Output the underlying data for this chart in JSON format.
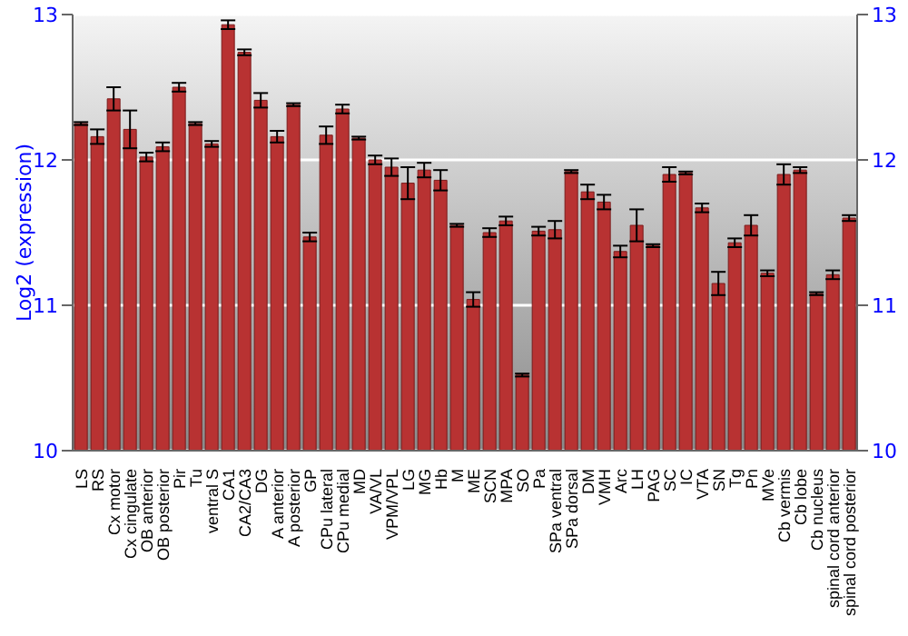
{
  "chart_data": {
    "type": "bar",
    "ylabel": "Log2 (expression)",
    "categories": [
      "LS",
      "RS",
      "Cx motor",
      "Cx cingulate",
      "OB anterior",
      "OB posterior",
      "Pir",
      "Tu",
      "ventral S",
      "CA1",
      "CA2/CA3",
      "DG",
      "A anterior",
      "A posterior",
      "GP",
      "CPu lateral",
      "CPu medial",
      "MD",
      "VA/VL",
      "VPM/VPL",
      "LG",
      "MG",
      "Hb",
      "M",
      "ME",
      "SCN",
      "MPA",
      "SO",
      "Pa",
      "SPa ventral",
      "SPa dorsal",
      "DM",
      "VMH",
      "Arc",
      "LH",
      "PAG",
      "SC",
      "IC",
      "VTA",
      "SN",
      "Tg",
      "Pn",
      "MVe",
      "Cb vermis",
      "Cb lobe",
      "Cb nucleus",
      "spinal cord anterior",
      "spinal cord posterior"
    ],
    "values": [
      12.25,
      12.16,
      12.42,
      12.21,
      12.02,
      12.09,
      12.5,
      12.25,
      12.11,
      12.93,
      12.74,
      12.41,
      12.16,
      12.38,
      11.47,
      12.17,
      12.35,
      12.15,
      12.0,
      11.95,
      11.84,
      11.93,
      11.86,
      11.55,
      11.04,
      11.5,
      11.58,
      10.52,
      11.51,
      11.52,
      11.92,
      11.78,
      11.71,
      11.37,
      11.55,
      11.41,
      11.9,
      11.91,
      11.67,
      11.15,
      11.43,
      11.55,
      11.22,
      11.9,
      11.93,
      11.08,
      11.21,
      11.6
    ],
    "errors": [
      0.01,
      0.05,
      0.08,
      0.13,
      0.03,
      0.03,
      0.03,
      0.01,
      0.02,
      0.03,
      0.02,
      0.05,
      0.04,
      0.01,
      0.03,
      0.06,
      0.03,
      0.01,
      0.03,
      0.06,
      0.11,
      0.05,
      0.07,
      0.01,
      0.05,
      0.03,
      0.03,
      0.01,
      0.03,
      0.06,
      0.01,
      0.05,
      0.05,
      0.04,
      0.11,
      0.01,
      0.05,
      0.01,
      0.03,
      0.08,
      0.03,
      0.07,
      0.02,
      0.07,
      0.02,
      0.01,
      0.03,
      0.02
    ],
    "color": "#b83232",
    "ylim": [
      10,
      13
    ],
    "yticks": [
      10,
      11,
      12,
      13
    ],
    "y2lim": [
      10,
      13
    ],
    "y2ticks": [
      10,
      11,
      12,
      13
    ],
    "grid": "y"
  }
}
